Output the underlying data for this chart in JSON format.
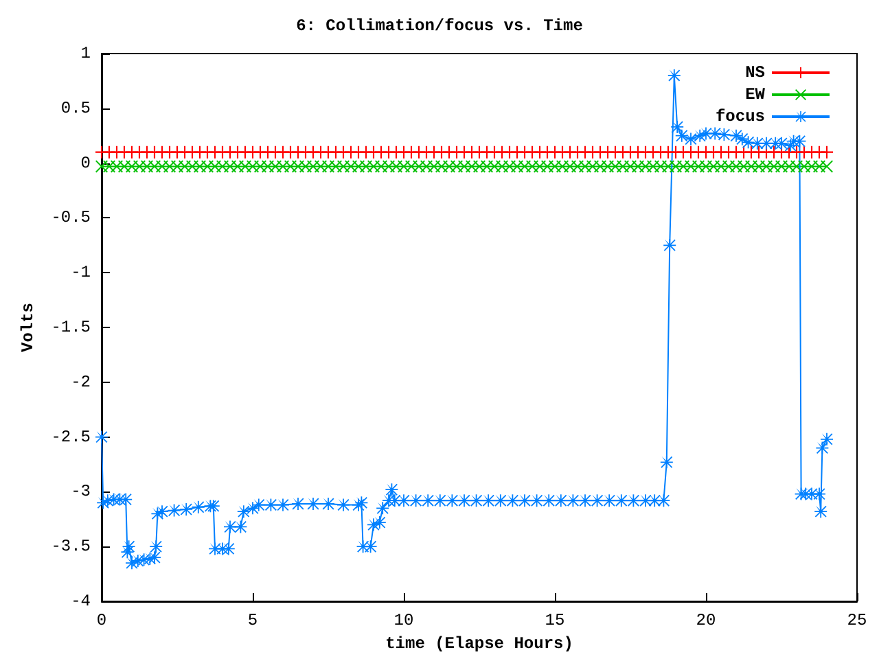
{
  "chart_data": {
    "type": "line",
    "title": "6: Collimation/focus vs. Time",
    "xlabel": "time (Elapse Hours)",
    "ylabel": "Volts",
    "xlim": [
      0,
      25
    ],
    "xticks": [
      0,
      5,
      10,
      15,
      20,
      25
    ],
    "ylim": [
      -4,
      1
    ],
    "yticks": [
      -4,
      -3.5,
      -3,
      -2.5,
      -2,
      -1.5,
      -1,
      -0.5,
      0,
      0.5,
      1
    ],
    "grid": false,
    "legend": "top right",
    "line_style": "solid",
    "x": [
      0,
      0.25,
      0.5,
      0.75,
      1,
      1.25,
      1.5,
      1.75,
      2,
      2.25,
      2.5,
      2.75,
      3,
      3.25,
      3.5,
      3.75,
      4,
      4.25,
      4.5,
      4.75,
      5,
      5.25,
      5.5,
      5.75,
      6,
      6.25,
      6.5,
      6.75,
      7,
      7.25,
      7.5,
      7.75,
      8,
      8.25,
      8.5,
      8.75,
      9,
      9.25,
      9.5,
      9.75,
      10,
      10.25,
      10.5,
      10.75,
      11,
      11.25,
      11.5,
      11.75,
      12,
      12.25,
      12.5,
      12.75,
      13,
      13.25,
      13.5,
      13.75,
      14,
      14.25,
      14.5,
      14.75,
      15,
      15.25,
      15.5,
      15.75,
      16,
      16.25,
      16.5,
      16.75,
      17,
      17.25,
      17.5,
      17.75,
      18,
      18.25,
      18.5,
      18.75,
      19,
      19.25,
      19.5,
      19.75,
      20,
      20.25,
      20.5,
      20.75,
      21,
      21.25,
      21.5,
      21.75,
      22,
      22.25,
      22.5,
      22.75,
      23,
      23.25,
      23.5,
      23.75,
      24
    ],
    "series": [
      {
        "name": "NS",
        "color": "#ff0000",
        "marker": "cross",
        "values": [
          0.1,
          0.1,
          0.1,
          0.1,
          0.1,
          0.1,
          0.1,
          0.1,
          0.1,
          0.1,
          0.1,
          0.1,
          0.1,
          0.1,
          0.1,
          0.1,
          0.1,
          0.1,
          0.1,
          0.1,
          0.1,
          0.1,
          0.1,
          0.1,
          0.1,
          0.1,
          0.1,
          0.1,
          0.1,
          0.1,
          0.1,
          0.1,
          0.1,
          0.1,
          0.1,
          0.1,
          0.1,
          0.1,
          0.1,
          0.1,
          0.1,
          0.1,
          0.1,
          0.1,
          0.1,
          0.1,
          0.1,
          0.1,
          0.1,
          0.1,
          0.1,
          0.1,
          0.1,
          0.1,
          0.1,
          0.1,
          0.1,
          0.1,
          0.1,
          0.1,
          0.1,
          0.1,
          0.1,
          0.1,
          0.1,
          0.1,
          0.1,
          0.1,
          0.1,
          0.1,
          0.1,
          0.1,
          0.1,
          0.1,
          0.1,
          0.1,
          0.1,
          0.1,
          0.1,
          0.1,
          0.1,
          0.1,
          0.1,
          0.1,
          0.1,
          0.1,
          0.1,
          0.1,
          0.1,
          0.1,
          0.1,
          0.1,
          0.1,
          0.1,
          0.1,
          0.1,
          0.1
        ]
      },
      {
        "name": "EW",
        "color": "#00c000",
        "marker": "x",
        "values": [
          -0.03,
          -0.03,
          -0.03,
          -0.03,
          -0.03,
          -0.03,
          -0.03,
          -0.03,
          -0.03,
          -0.03,
          -0.03,
          -0.03,
          -0.03,
          -0.03,
          -0.03,
          -0.03,
          -0.03,
          -0.03,
          -0.03,
          -0.03,
          -0.03,
          -0.03,
          -0.03,
          -0.03,
          -0.03,
          -0.03,
          -0.03,
          -0.03,
          -0.03,
          -0.03,
          -0.03,
          -0.03,
          -0.03,
          -0.03,
          -0.03,
          -0.03,
          -0.03,
          -0.03,
          -0.03,
          -0.03,
          -0.03,
          -0.03,
          -0.03,
          -0.03,
          -0.03,
          -0.03,
          -0.03,
          -0.03,
          -0.03,
          -0.03,
          -0.03,
          -0.03,
          -0.03,
          -0.03,
          -0.03,
          -0.03,
          -0.03,
          -0.03,
          -0.03,
          -0.03,
          -0.03,
          -0.03,
          -0.03,
          -0.03,
          -0.03,
          -0.03,
          -0.03,
          -0.03,
          -0.03,
          -0.03,
          -0.03,
          -0.03,
          -0.03,
          -0.03,
          -0.03,
          -0.03,
          -0.03,
          -0.03,
          -0.03,
          -0.03,
          -0.03,
          -0.03,
          -0.03,
          -0.03,
          -0.03,
          -0.03,
          -0.03,
          -0.03,
          -0.03,
          -0.03,
          -0.03,
          -0.03,
          -0.03,
          -0.03,
          -0.03,
          -0.03,
          -0.03
        ]
      },
      {
        "name": "focus",
        "color": "#0080ff",
        "marker": "star",
        "x": [
          0,
          0.05,
          0.2,
          0.4,
          0.6,
          0.8,
          0.85,
          0.9,
          1.0,
          1.2,
          1.4,
          1.6,
          1.75,
          1.8,
          1.85,
          2.0,
          2.4,
          2.8,
          3.2,
          3.6,
          3.7,
          3.75,
          4.0,
          4.2,
          4.25,
          4.6,
          4.7,
          5.0,
          5.2,
          5.6,
          6,
          6.5,
          7,
          7.5,
          8,
          8.5,
          8.6,
          8.65,
          8.9,
          9.0,
          9.2,
          9.3,
          9.5,
          9.6,
          9.7,
          10,
          10.4,
          10.8,
          11.2,
          11.6,
          12,
          12.4,
          12.8,
          13.2,
          13.6,
          14,
          14.4,
          14.8,
          15.2,
          15.6,
          16,
          16.4,
          16.8,
          17.2,
          17.6,
          18,
          18.3,
          18.6,
          18.7,
          18.8,
          18.95,
          19.05,
          19.2,
          19.5,
          19.8,
          20,
          20.3,
          20.6,
          21,
          21.2,
          21.4,
          21.7,
          22,
          22.3,
          22.5,
          22.8,
          22.9,
          23.1,
          23.15,
          23.3,
          23.5,
          23.75,
          23.8,
          23.85,
          24.0
        ],
        "values": [
          -2.5,
          -3.1,
          -3.08,
          -3.07,
          -3.07,
          -3.07,
          -3.55,
          -3.5,
          -3.65,
          -3.63,
          -3.62,
          -3.61,
          -3.6,
          -3.5,
          -3.2,
          -3.18,
          -3.17,
          -3.16,
          -3.14,
          -3.13,
          -3.13,
          -3.52,
          -3.52,
          -3.52,
          -3.32,
          -3.32,
          -3.18,
          -3.15,
          -3.12,
          -3.12,
          -3.12,
          -3.11,
          -3.11,
          -3.11,
          -3.12,
          -3.12,
          -3.1,
          -3.5,
          -3.5,
          -3.3,
          -3.28,
          -3.15,
          -3.08,
          -2.98,
          -3.08,
          -3.08,
          -3.08,
          -3.08,
          -3.08,
          -3.08,
          -3.08,
          -3.08,
          -3.08,
          -3.08,
          -3.08,
          -3.08,
          -3.08,
          -3.08,
          -3.08,
          -3.08,
          -3.08,
          -3.08,
          -3.08,
          -3.08,
          -3.08,
          -3.08,
          -3.08,
          -3.08,
          -2.73,
          -0.75,
          0.8,
          0.33,
          0.25,
          0.22,
          0.25,
          0.27,
          0.27,
          0.26,
          0.25,
          0.22,
          0.19,
          0.18,
          0.18,
          0.18,
          0.18,
          0.16,
          0.2,
          0.2,
          -3.02,
          -3.02,
          -3.02,
          -3.02,
          -3.18,
          -2.6,
          -2.52
        ]
      }
    ]
  }
}
